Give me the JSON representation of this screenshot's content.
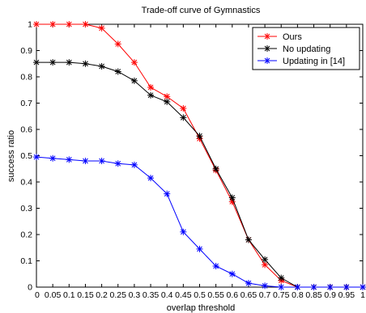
{
  "chart_data": {
    "type": "line",
    "title": "Trade-off curve of Gymnastics",
    "xlabel": "overlap threshold",
    "ylabel": "success ratio",
    "xlim": [
      0,
      1
    ],
    "ylim": [
      0,
      1
    ],
    "x": [
      0,
      0.05,
      0.1,
      0.15,
      0.2,
      0.25,
      0.3,
      0.35,
      0.4,
      0.45,
      0.5,
      0.55,
      0.6,
      0.65,
      0.7,
      0.75,
      0.8,
      0.85,
      0.9,
      0.95,
      1
    ],
    "x_tick_labels": [
      "0",
      "0.05",
      "0.1",
      "0.15",
      "0.2",
      "0.25",
      "0.3",
      "0.35",
      "0.4",
      "0.45",
      "0.5",
      "0.55",
      "0.6",
      "0.65",
      "0.7",
      "0.75",
      "0.8",
      "0.85",
      "0.9",
      "0.95",
      "1"
    ],
    "y_ticks": [
      0,
      0.1,
      0.2,
      0.3,
      0.4,
      0.5,
      0.6,
      0.7,
      0.8,
      0.9,
      1
    ],
    "y_tick_labels": [
      "0",
      "0.1",
      "0.2",
      "0.3",
      "0.4",
      "0.5",
      "0.6",
      "0.7",
      "0.8",
      "0.9",
      "1"
    ],
    "grid": false,
    "legend_position": "top-right",
    "marker": "asterisk",
    "series": [
      {
        "name": "Ours",
        "color": "#ff0000",
        "values": [
          1.0,
          1.0,
          1.0,
          1.0,
          0.985,
          0.925,
          0.855,
          0.76,
          0.725,
          0.68,
          0.565,
          0.445,
          0.325,
          0.18,
          0.085,
          0.025,
          0.0,
          0.0,
          0.0,
          0.0,
          0.0
        ]
      },
      {
        "name": "No updating",
        "color": "#000000",
        "values": [
          0.855,
          0.855,
          0.855,
          0.85,
          0.84,
          0.82,
          0.785,
          0.73,
          0.705,
          0.645,
          0.575,
          0.45,
          0.34,
          0.18,
          0.105,
          0.035,
          0.0,
          0.0,
          0.0,
          0.0,
          0.0
        ]
      },
      {
        "name": "Updating in [14]",
        "color": "#0000ff",
        "values": [
          0.495,
          0.49,
          0.485,
          0.48,
          0.48,
          0.47,
          0.465,
          0.415,
          0.355,
          0.21,
          0.145,
          0.08,
          0.05,
          0.015,
          0.005,
          0.0,
          0.0,
          0.0,
          0.0,
          0.0,
          0.0
        ]
      }
    ]
  }
}
